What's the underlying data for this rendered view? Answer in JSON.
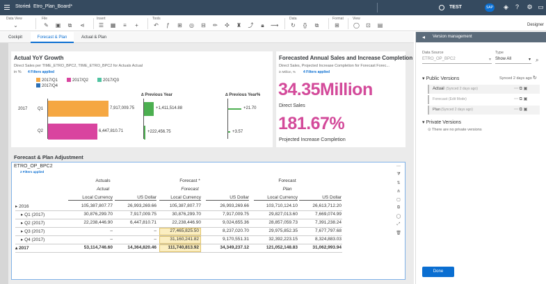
{
  "topbar": {
    "stories": "Stories",
    "file": "Etro_Plan_Board*",
    "user": "TEST",
    "sap": "SAP"
  },
  "toolbar": {
    "groups": [
      "Data View",
      "File",
      "Insert",
      "Tools",
      "Data",
      "Format",
      "View"
    ],
    "designer": "Designer"
  },
  "tabs": [
    "Cockpit",
    "Forecast & Plan",
    "Actual & Plan"
  ],
  "yoy": {
    "title": "Actual YoY Growth",
    "sub": "Direct Sales per TIME_ETRO_BPC2, TIME_ETRO_BPC2 for Actuals Actual",
    "unit": "in %",
    "filters": "4 Filters applied",
    "legend": [
      "2017/Q1",
      "2017/Q2",
      "2017/Q3",
      "2017/Q4"
    ],
    "prev_year": "Previous Year",
    "prev_year_pct": "Previous Year%",
    "year": "2017",
    "rows": [
      {
        "label": "Q1",
        "value": "7,917,009.75",
        "delta": "+1,411,514.88",
        "pct": "+21.70"
      },
      {
        "label": "Q2",
        "value": "6,447,810.71",
        "delta": "+222,456.75",
        "pct": "+3.57"
      }
    ]
  },
  "colors": {
    "q1": "#f5a742",
    "q2": "#d9449f",
    "q3": "#4fc3a1",
    "q4": "#2c6fb5",
    "green": "#4caf50",
    "magenta": "#d34a9a",
    "blue": "#0a6ed1",
    "header": "#354a5f"
  },
  "forecast": {
    "title": "Forecasted Annual Sales and Increase Completion",
    "sub": "Direct Sales, Projected Increase Completion for Forecast Forec...",
    "unit": "in Million, %",
    "filters": "4 Filters applied",
    "kpi1": "34.35Million",
    "kpi1_label": "Direct Sales",
    "kpi2": "181.67%",
    "kpi2_label": "Projected Increase Completion"
  },
  "table": {
    "section": "Forecast & Plan Adjustment",
    "model": "ETRO_OP_BPC2",
    "filters": "2 Filters applied",
    "h1": [
      "Actuals",
      "Forecast *",
      "Forecast"
    ],
    "h2": [
      "Actual",
      "Forecast",
      "Plan"
    ],
    "h3": [
      "Local Currency",
      "US Dollar",
      "Local Currency",
      "US Dollar",
      "Local Currency",
      "US Dollar"
    ],
    "rows": [
      {
        "label": "2016",
        "c": [
          "105,387,807.77",
          "26,993,269.66",
          "105,387,807.77",
          "26,993,269.66",
          "103,710,124.10",
          "26,613,712.20"
        ]
      },
      {
        "label": "Q1 (2017)",
        "c": [
          "30,876,299.70",
          "7,917,009.75",
          "30,876,299.70",
          "7,917,009.75",
          "29,827,013.60",
          "7,669,074.99"
        ]
      },
      {
        "label": "Q2 (2017)",
        "c": [
          "22,238,446.90",
          "6,447,810.71",
          "22,238,446.90",
          "9,024,655.36",
          "28,857,059.73",
          "7,391,238.24"
        ]
      },
      {
        "label": "Q3 (2017)",
        "c": [
          "–",
          "–",
          "27,465,825.50",
          "8,237,020.70",
          "29,975,852.35",
          "7,677,797.68"
        ]
      },
      {
        "label": "Q4 (2017)",
        "c": [
          "–",
          "–",
          "31,160,241.82",
          "9,170,551.31",
          "32,392,223.15",
          "8,324,883.03"
        ]
      },
      {
        "label": "2017",
        "c": [
          "53,114,746.60",
          "14,364,820.46",
          "111,740,813.92",
          "34,349,237.12",
          "121,052,148.83",
          "31,062,993.94"
        ]
      }
    ]
  },
  "panel": {
    "title": "Version management",
    "ds_label": "Data Source",
    "ds_value": "ETRO_OP_BPC2",
    "type_label": "Type",
    "type_value": "Show All",
    "public": "Public Versions",
    "synced": "Synced 2 days ago",
    "versions": [
      {
        "name": "Actual",
        "note": "(Synced 2 days ago)"
      },
      {
        "name": "Forecast",
        "note": "(Edit Mode)"
      },
      {
        "name": "Plan",
        "note": "(Synced 2 days ago)"
      }
    ],
    "private": "Private Versions",
    "none": "There are no private versions",
    "done": "Done"
  }
}
